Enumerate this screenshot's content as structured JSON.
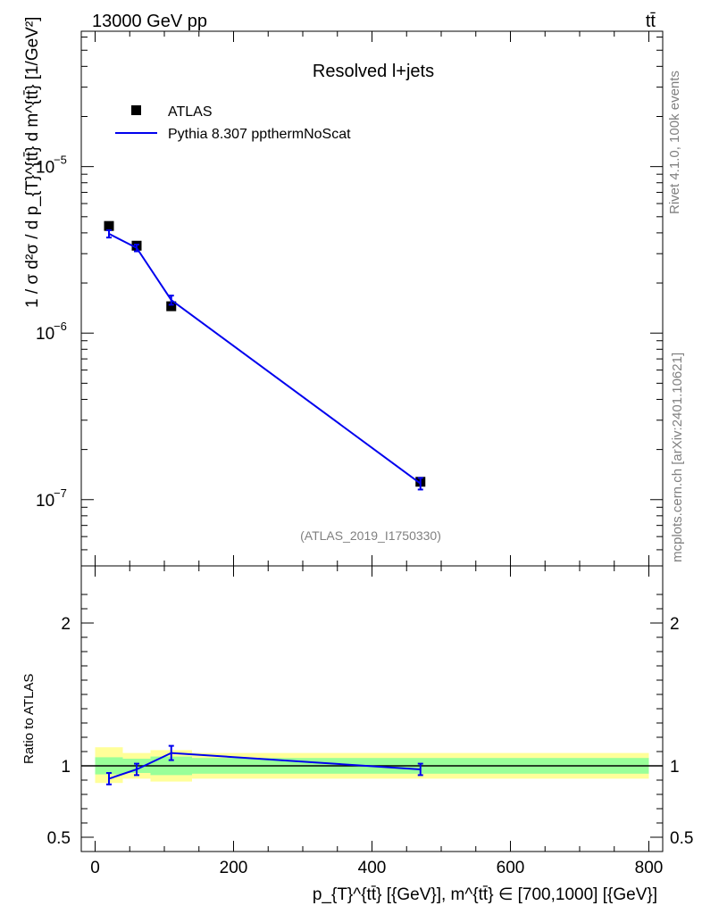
{
  "header": {
    "left": "13000 GeV pp",
    "right": "tt̄"
  },
  "side": {
    "rivet": "Rivet 4.1.0,  100k events",
    "mcplots": "mcplots.cern.ch [arXiv:2401.10621]"
  },
  "chart_data": {
    "type": "line",
    "title": "Resolved l+jets",
    "analysis_label": "(ATLAS_2019_I1750330)",
    "xlabel": "p_{T}^{tt̄} [{GeV}], m^{tt̄} ∈ [700,1000] [{GeV}]",
    "ylabel": "1 / σ d²σ / d p_{T}^{tt̄} d m^{tt̄} [1/GeV²]",
    "ratio_ylabel": "Ratio to ATLAS",
    "xlim": [
      -20,
      820
    ],
    "ylim": [
      4e-08,
      6.5e-05
    ],
    "ratio_ylim": [
      0.4,
      2.4
    ],
    "x_ticks": [
      {
        "v": 0,
        "label": "0"
      },
      {
        "v": 200,
        "label": "200"
      },
      {
        "v": 400,
        "label": "400"
      },
      {
        "v": 600,
        "label": "600"
      },
      {
        "v": 800,
        "label": "800"
      }
    ],
    "y_ticks": [
      {
        "exp": -7,
        "base": "10",
        "power": "−7"
      },
      {
        "exp": -6,
        "base": "10",
        "power": "−6"
      },
      {
        "exp": -5,
        "base": "10",
        "power": "−5"
      }
    ],
    "ratio_ticks": [
      {
        "v": 0.5,
        "label": "0.5"
      },
      {
        "v": 1,
        "label": "1"
      },
      {
        "v": 2,
        "label": "2"
      }
    ],
    "bins": [
      [
        0,
        40
      ],
      [
        40,
        80
      ],
      [
        80,
        140
      ],
      [
        140,
        800
      ]
    ],
    "series": [
      {
        "name": "ATLAS",
        "marker": "square",
        "color": "#000000",
        "x": [
          20,
          60,
          110,
          470
        ],
        "y": [
          4.4e-06,
          3.35e-06,
          1.45e-06,
          1.28e-07
        ]
      },
      {
        "name": "Pythia 8.307 ppthermNoScat",
        "marker": "line",
        "color": "#0000ee",
        "x": [
          20,
          60,
          110,
          470
        ],
        "y": [
          3.95e-06,
          3.25e-06,
          1.58e-06,
          1.25e-07
        ],
        "yerr": [
          2e-07,
          1.5e-07,
          1e-07,
          1e-08
        ]
      }
    ],
    "ratio": {
      "x": [
        20,
        60,
        110,
        470
      ],
      "values": [
        0.91,
        0.975,
        1.09,
        0.975
      ],
      "errors": [
        0.04,
        0.04,
        0.05,
        0.04
      ],
      "band_inner": [
        [
          0.94,
          1.06
        ],
        [
          0.95,
          1.05
        ],
        [
          0.935,
          1.065
        ],
        [
          0.945,
          1.055
        ]
      ],
      "band_outer": [
        [
          0.88,
          1.13
        ],
        [
          0.91,
          1.09
        ],
        [
          0.89,
          1.11
        ],
        [
          0.91,
          1.09
        ]
      ]
    },
    "colors": {
      "model": "#0000ee",
      "data": "#000000",
      "band_inner": "#99ff99",
      "band_outer": "#ffff99"
    }
  }
}
